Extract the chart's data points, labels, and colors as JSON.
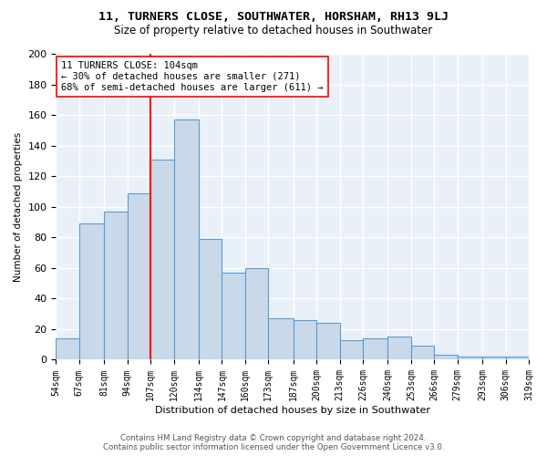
{
  "title": "11, TURNERS CLOSE, SOUTHWATER, HORSHAM, RH13 9LJ",
  "subtitle": "Size of property relative to detached houses in Southwater",
  "xlabel": "Distribution of detached houses by size in Southwater",
  "ylabel": "Number of detached properties",
  "bar_values": [
    14,
    89,
    97,
    109,
    131,
    157,
    79,
    57,
    60,
    27,
    26,
    24,
    13,
    14,
    15,
    9,
    3,
    2,
    2,
    2
  ],
  "bin_labels": [
    "54sqm",
    "67sqm",
    "81sqm",
    "94sqm",
    "107sqm",
    "120sqm",
    "134sqm",
    "147sqm",
    "160sqm",
    "173sqm",
    "187sqm",
    "200sqm",
    "213sqm",
    "226sqm",
    "240sqm",
    "253sqm",
    "266sqm",
    "279sqm",
    "293sqm",
    "306sqm",
    "319sqm"
  ],
  "bin_edges": [
    54,
    67,
    81,
    94,
    107,
    120,
    134,
    147,
    160,
    173,
    187,
    200,
    213,
    226,
    240,
    253,
    266,
    279,
    293,
    306,
    319
  ],
  "bar_color": "#c9d9ea",
  "bar_edge_color": "#5b9bd5",
  "vline_x": 107,
  "vline_color": "red",
  "annotation_text": "11 TURNERS CLOSE: 104sqm\n← 30% of detached houses are smaller (271)\n68% of semi-detached houses are larger (611) →",
  "annotation_box_color": "white",
  "annotation_box_edge_color": "red",
  "ylim": [
    0,
    200
  ],
  "yticks": [
    0,
    20,
    40,
    60,
    80,
    100,
    120,
    140,
    160,
    180,
    200
  ],
  "bg_color": "#eaf0f8",
  "grid_color": "white",
  "footer_line1": "Contains HM Land Registry data © Crown copyright and database right 2024.",
  "footer_line2": "Contains public sector information licensed under the Open Government Licence v3.0."
}
